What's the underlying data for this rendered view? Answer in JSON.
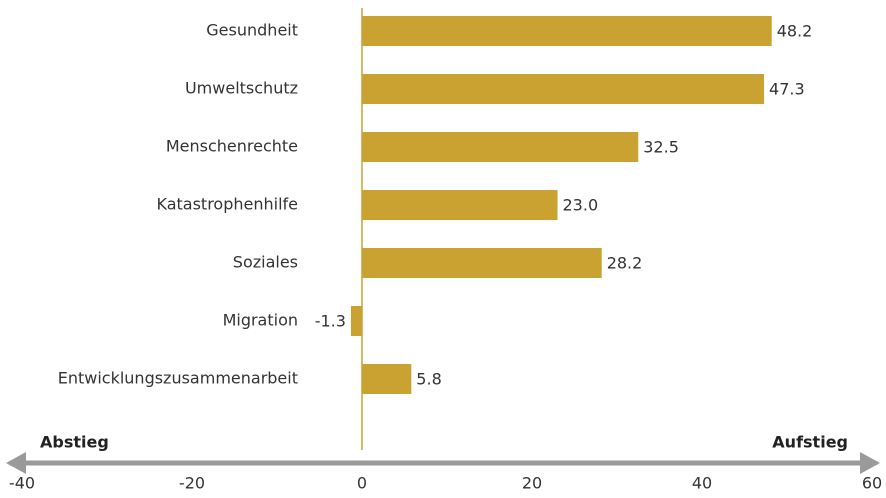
{
  "chart_data": {
    "type": "hbar",
    "categories": [
      "Gesundheit",
      "Umweltschutz",
      "Menschenrechte",
      "Katastrophenhilfe",
      "Soziales",
      "Migration",
      "Entwicklungszusammenarbeit"
    ],
    "values": [
      48.2,
      47.3,
      32.5,
      23.0,
      28.2,
      -1.3,
      5.8
    ],
    "value_labels": [
      "48.2",
      "47.3",
      "32.5",
      "23.0",
      "28.2",
      "-1.3",
      "5.8"
    ],
    "color": "#c9a232",
    "xlim": [
      -40,
      60
    ],
    "xticks": [
      -40,
      -20,
      0,
      20,
      40,
      60
    ],
    "annotations": {
      "left": "Abstieg",
      "right": "Aufstieg"
    }
  }
}
